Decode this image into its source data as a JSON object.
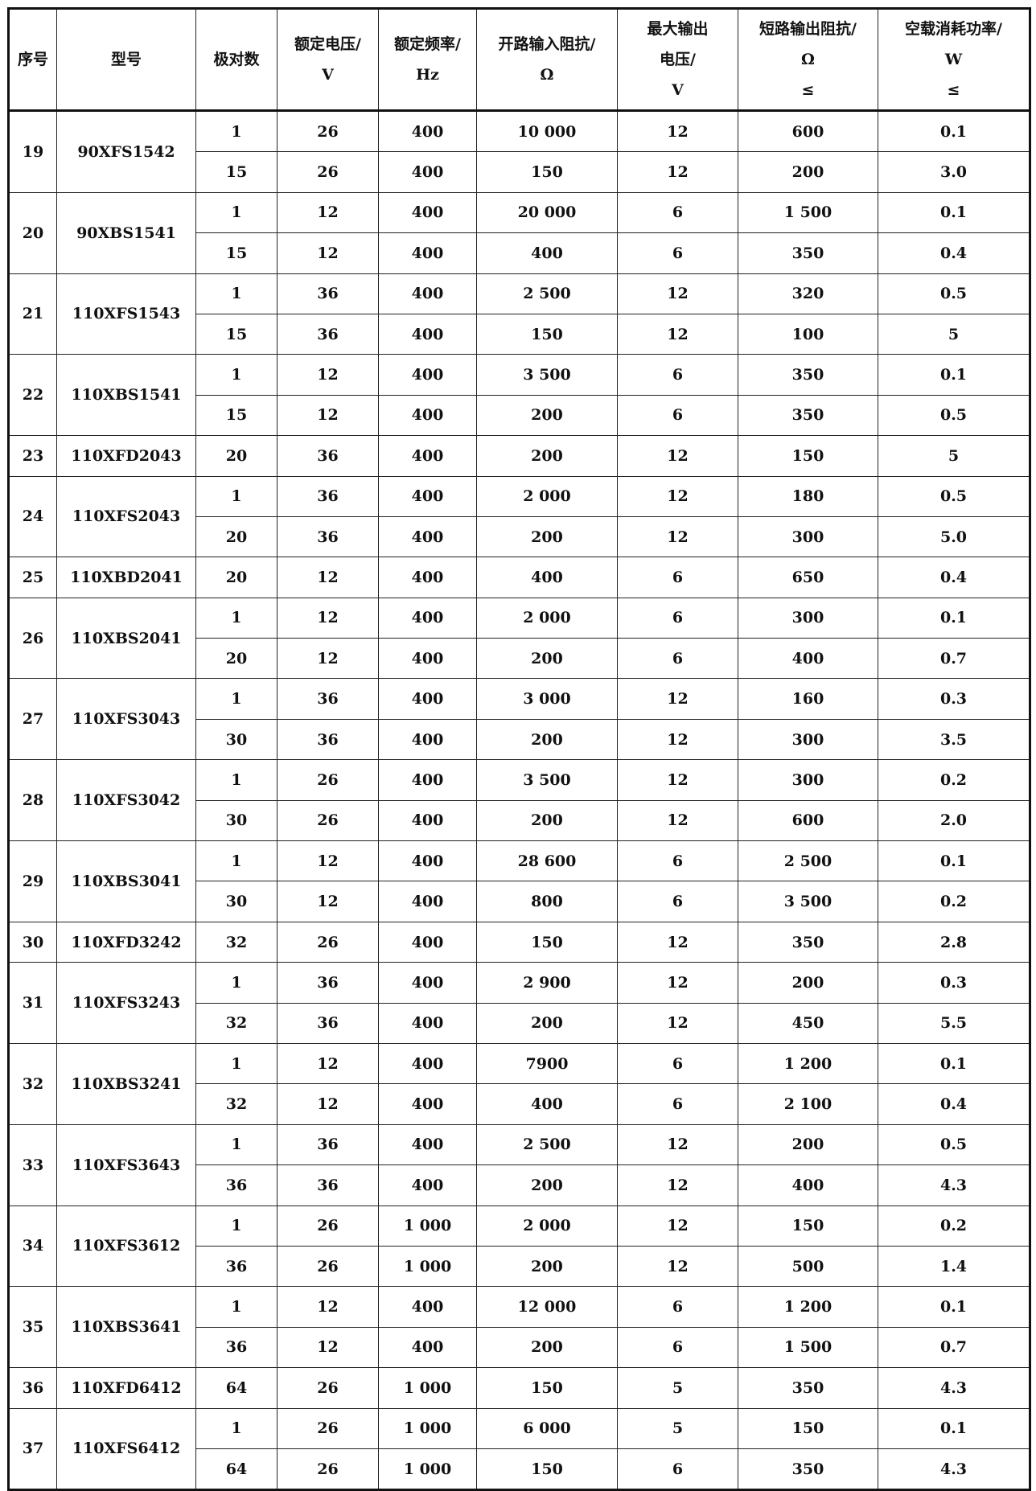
{
  "headers": [
    "序号",
    "型号",
    "极对数",
    "额定电压/\nV",
    "额定频率/\nHz",
    "开路输入阻抗/\nΩ",
    "最大输出\n电压/\nV",
    "短路输出阻抗/\nΩ\n≤",
    "空载消耗功率/\nW\n≤"
  ],
  "groups": [
    {
      "no": "19",
      "model": "90XFS1542",
      "rows": [
        [
          "1",
          "26",
          "400",
          "10 000",
          "12",
          "600",
          "0.1"
        ],
        [
          "15",
          "26",
          "400",
          "150",
          "12",
          "200",
          "3.0"
        ]
      ]
    },
    {
      "no": "20",
      "model": "90XBS1541",
      "rows": [
        [
          "1",
          "12",
          "400",
          "20 000",
          "6",
          "1 500",
          "0.1"
        ],
        [
          "15",
          "12",
          "400",
          "400",
          "6",
          "350",
          "0.4"
        ]
      ]
    },
    {
      "no": "21",
      "model": "110XFS1543",
      "rows": [
        [
          "1",
          "36",
          "400",
          "2 500",
          "12",
          "320",
          "0.5"
        ],
        [
          "15",
          "36",
          "400",
          "150",
          "12",
          "100",
          "5"
        ]
      ]
    },
    {
      "no": "22",
      "model": "110XBS1541",
      "rows": [
        [
          "1",
          "12",
          "400",
          "3 500",
          "6",
          "350",
          "0.1"
        ],
        [
          "15",
          "12",
          "400",
          "200",
          "6",
          "350",
          "0.5"
        ]
      ]
    },
    {
      "no": "23",
      "model": "110XFD2043",
      "rows": [
        [
          "20",
          "36",
          "400",
          "200",
          "12",
          "150",
          "5"
        ]
      ]
    },
    {
      "no": "24",
      "model": "110XFS2043",
      "rows": [
        [
          "1",
          "36",
          "400",
          "2 000",
          "12",
          "180",
          "0.5"
        ],
        [
          "20",
          "36",
          "400",
          "200",
          "12",
          "300",
          "5.0"
        ]
      ]
    },
    {
      "no": "25",
      "model": "110XBD2041",
      "rows": [
        [
          "20",
          "12",
          "400",
          "400",
          "6",
          "650",
          "0.4"
        ]
      ]
    },
    {
      "no": "26",
      "model": "110XBS2041",
      "rows": [
        [
          "1",
          "12",
          "400",
          "2 000",
          "6",
          "300",
          "0.1"
        ],
        [
          "20",
          "12",
          "400",
          "200",
          "6",
          "400",
          "0.7"
        ]
      ]
    },
    {
      "no": "27",
      "model": "110XFS3043",
      "rows": [
        [
          "1",
          "36",
          "400",
          "3 000",
          "12",
          "160",
          "0.3"
        ],
        [
          "30",
          "36",
          "400",
          "200",
          "12",
          "300",
          "3.5"
        ]
      ]
    },
    {
      "no": "28",
      "model": "110XFS3042",
      "rows": [
        [
          "1",
          "26",
          "400",
          "3 500",
          "12",
          "300",
          "0.2"
        ],
        [
          "30",
          "26",
          "400",
          "200",
          "12",
          "600",
          "2.0"
        ]
      ]
    },
    {
      "no": "29",
      "model": "110XBS3041",
      "rows": [
        [
          "1",
          "12",
          "400",
          "28 600",
          "6",
          "2 500",
          "0.1"
        ],
        [
          "30",
          "12",
          "400",
          "800",
          "6",
          "3 500",
          "0.2"
        ]
      ]
    },
    {
      "no": "30",
      "model": "110XFD3242",
      "rows": [
        [
          "32",
          "26",
          "400",
          "150",
          "12",
          "350",
          "2.8"
        ]
      ]
    },
    {
      "no": "31",
      "model": "110XFS3243",
      "rows": [
        [
          "1",
          "36",
          "400",
          "2 900",
          "12",
          "200",
          "0.3"
        ],
        [
          "32",
          "36",
          "400",
          "200",
          "12",
          "450",
          "5.5"
        ]
      ]
    },
    {
      "no": "32",
      "model": "110XBS3241",
      "rows": [
        [
          "1",
          "12",
          "400",
          "7900",
          "6",
          "1 200",
          "0.1"
        ],
        [
          "32",
          "12",
          "400",
          "400",
          "6",
          "2 100",
          "0.4"
        ]
      ]
    },
    {
      "no": "33",
      "model": "110XFS3643",
      "rows": [
        [
          "1",
          "36",
          "400",
          "2 500",
          "12",
          "200",
          "0.5"
        ],
        [
          "36",
          "36",
          "400",
          "200",
          "12",
          "400",
          "4.3"
        ]
      ]
    },
    {
      "no": "34",
      "model": "110XFS3612",
      "rows": [
        [
          "1",
          "26",
          "1 000",
          "2 000",
          "12",
          "150",
          "0.2"
        ],
        [
          "36",
          "26",
          "1 000",
          "200",
          "12",
          "500",
          "1.4"
        ]
      ]
    },
    {
      "no": "35",
      "model": "110XBS3641",
      "rows": [
        [
          "1",
          "12",
          "400",
          "12 000",
          "6",
          "1 200",
          "0.1"
        ],
        [
          "36",
          "12",
          "400",
          "200",
          "6",
          "1 500",
          "0.7"
        ]
      ]
    },
    {
      "no": "36",
      "model": "110XFD6412",
      "rows": [
        [
          "64",
          "26",
          "1 000",
          "150",
          "5",
          "350",
          "4.3"
        ]
      ]
    },
    {
      "no": "37",
      "model": "110XFS6412",
      "rows": [
        [
          "1",
          "26",
          "1 000",
          "6 000",
          "5",
          "150",
          "0.1"
        ],
        [
          "64",
          "26",
          "1 000",
          "150",
          "6",
          "350",
          "4.3"
        ]
      ]
    }
  ]
}
